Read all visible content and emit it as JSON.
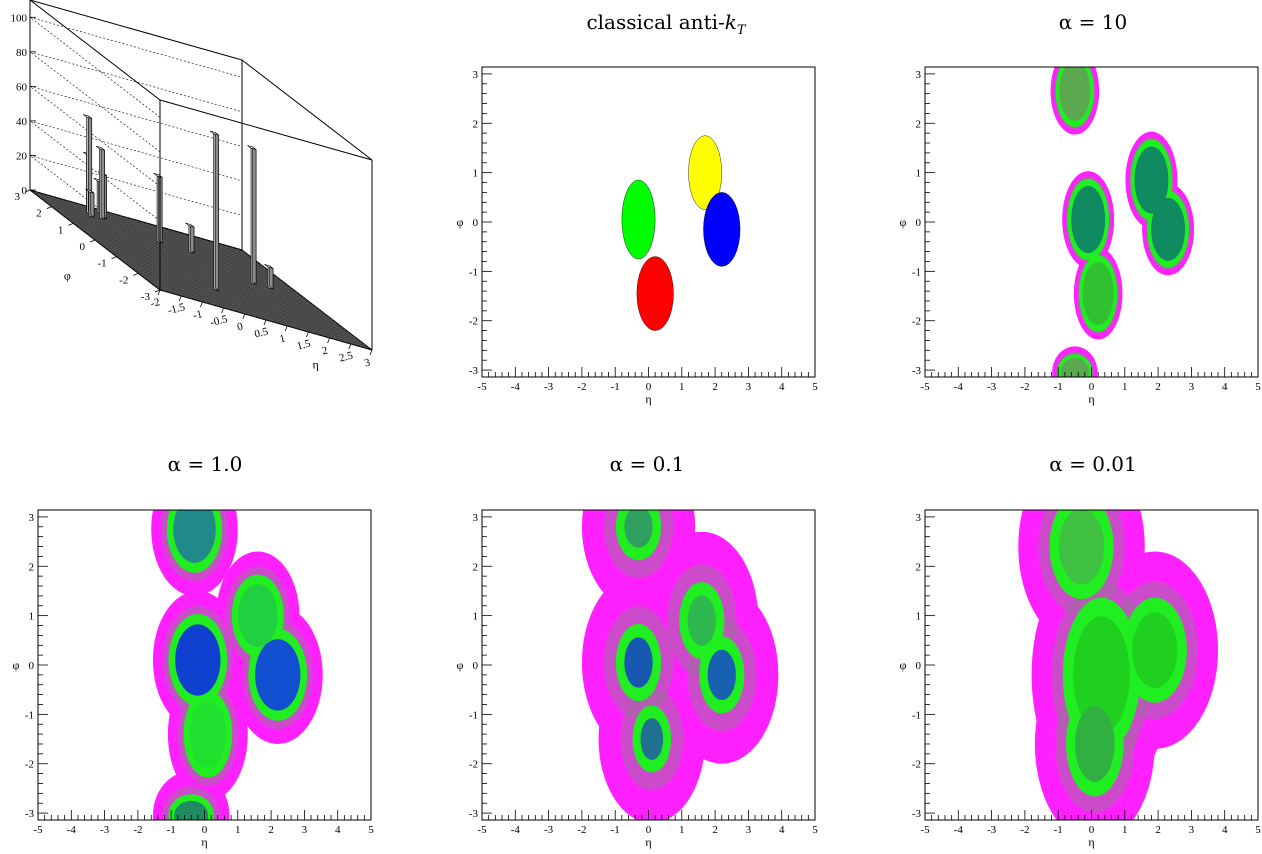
{
  "figure": {
    "panels": [
      {
        "title": "",
        "type": "3d"
      },
      {
        "title": "classical anti-kT",
        "title_main": "classical anti-",
        "title_var": "k",
        "title_sub": "T",
        "type": "jets"
      },
      {
        "title": "α = 10",
        "type": "density"
      },
      {
        "title": "α = 1.0",
        "type": "density"
      },
      {
        "title": "α = 0.1",
        "type": "density"
      },
      {
        "title": "α = 0.01",
        "type": "density"
      }
    ]
  },
  "chart_data": [
    {
      "type": "bar3d",
      "title": "",
      "xlabel": "η",
      "ylabel": "φ",
      "zlabel": "",
      "xlim": [
        -2,
        3
      ],
      "ylim": [
        -3,
        3
      ],
      "zlim": [
        0,
        110
      ],
      "x_ticks": [
        "-2",
        "-1.5",
        "-1",
        "-0.5",
        "0",
        "0.5",
        "1",
        "1.5",
        "2",
        "2.5",
        "3"
      ],
      "y_ticks": [
        "-3",
        "-2",
        "-1",
        "0",
        "1",
        "2",
        "3"
      ],
      "z_ticks": [
        "0",
        "20",
        "40",
        "60",
        "80",
        "100"
      ],
      "towers": [
        {
          "eta": 0.1,
          "phi": -1.4,
          "height": 90
        },
        {
          "eta": 1.8,
          "phi": 0.2,
          "height": 78
        },
        {
          "eta": 0.3,
          "phi": 1.6,
          "height": 38
        },
        {
          "eta": 1.0,
          "phi": 1.5,
          "height": 15
        },
        {
          "eta": 2.2,
          "phi": 0.2,
          "height": 12
        },
        {
          "eta": -0.9,
          "phi": 2.5,
          "height": 55
        },
        {
          "eta": -0.7,
          "phi": 2.3,
          "height": 40
        },
        {
          "eta": -0.8,
          "phi": 2.7,
          "height": 32
        },
        {
          "eta": -0.6,
          "phi": 2.4,
          "height": 25
        },
        {
          "eta": -0.5,
          "phi": 2.8,
          "height": 18
        },
        {
          "eta": -1.0,
          "phi": 2.2,
          "height": 14
        }
      ]
    },
    {
      "type": "jets",
      "title": "classical anti-kT",
      "xlabel": "η",
      "ylabel": "φ",
      "xlim": [
        -5,
        5
      ],
      "ylim": [
        -3.14,
        3.14
      ],
      "x_ticks": [
        "-5",
        "-4",
        "-3",
        "-2",
        "-1",
        "0",
        "1",
        "2",
        "3",
        "4",
        "5"
      ],
      "y_ticks": [
        "-3",
        "-2",
        "-1",
        "0",
        "1",
        "2",
        "3"
      ],
      "jets": [
        {
          "color": "#00ff00",
          "eta": -0.3,
          "phi": 0.05,
          "reta": 0.5,
          "rphi": 0.8
        },
        {
          "color": "#ffff00",
          "eta": 1.7,
          "phi": 1.0,
          "reta": 0.5,
          "rphi": 0.75
        },
        {
          "color": "#0000ff",
          "eta": 2.2,
          "phi": -0.15,
          "reta": 0.55,
          "rphi": 0.75
        },
        {
          "color": "#ff0000",
          "eta": 0.2,
          "phi": -1.45,
          "reta": 0.55,
          "rphi": 0.75
        }
      ]
    },
    {
      "type": "heatmap",
      "title": "α = 10",
      "xlabel": "η",
      "ylabel": "φ",
      "xlim": [
        -5,
        5
      ],
      "ylim": [
        -3.14,
        3.14
      ],
      "x_ticks": [
        "-5",
        "-4",
        "-3",
        "-2",
        "-1",
        "0",
        "1",
        "2",
        "3",
        "4",
        "5"
      ],
      "y_ticks": [
        "-3",
        "-2",
        "-1",
        "0",
        "1",
        "2",
        "3"
      ],
      "blobs": [
        {
          "eta": -0.5,
          "phi": 2.65,
          "reta": 0.55,
          "rphi": 0.7,
          "core": "#5aa850"
        },
        {
          "eta": -0.1,
          "phi": 0.05,
          "reta": 0.6,
          "rphi": 0.8,
          "core": "#108a60"
        },
        {
          "eta": 1.8,
          "phi": 0.85,
          "reta": 0.6,
          "rphi": 0.8,
          "core": "#108a60"
        },
        {
          "eta": 2.3,
          "phi": -0.15,
          "reta": 0.6,
          "rphi": 0.75,
          "core": "#108a60"
        },
        {
          "eta": 0.2,
          "phi": -1.45,
          "reta": 0.55,
          "rphi": 0.75,
          "core": "#30c030"
        },
        {
          "eta": -0.5,
          "phi": -3.05,
          "reta": 0.5,
          "rphi": 0.35,
          "core": "#5aa850"
        }
      ]
    },
    {
      "type": "heatmap",
      "title": "α = 1.0",
      "xlabel": "η",
      "ylabel": "φ",
      "xlim": [
        -5,
        5
      ],
      "ylim": [
        -3.14,
        3.14
      ],
      "x_ticks": [
        "-5",
        "-4",
        "-3",
        "-2",
        "-1",
        "0",
        "1",
        "2",
        "3",
        "4",
        "5"
      ],
      "y_ticks": [
        "-3",
        "-2",
        "-1",
        "0",
        "1",
        "2",
        "3"
      ],
      "blobs": [
        {
          "eta": -0.3,
          "phi": 2.75,
          "reta": 0.75,
          "rphi": 0.8,
          "core": "#208a8a"
        },
        {
          "eta": -0.2,
          "phi": 0.1,
          "reta": 0.8,
          "rphi": 0.85,
          "core": "#1040d0"
        },
        {
          "eta": 1.6,
          "phi": 1.0,
          "reta": 0.7,
          "rphi": 0.75,
          "core": "#20d040"
        },
        {
          "eta": 2.2,
          "phi": -0.2,
          "reta": 0.8,
          "rphi": 0.85,
          "core": "#1050d0"
        },
        {
          "eta": 0.1,
          "phi": -1.4,
          "reta": 0.65,
          "rphi": 0.8,
          "core": "#20e030"
        },
        {
          "eta": -0.4,
          "phi": -3.05,
          "reta": 0.6,
          "rphi": 0.35,
          "core": "#208a60"
        }
      ]
    },
    {
      "type": "heatmap",
      "title": "α = 0.1",
      "xlabel": "η",
      "ylabel": "φ",
      "xlim": [
        -5,
        5
      ],
      "ylim": [
        -3.14,
        3.14
      ],
      "x_ticks": [
        "-5",
        "-4",
        "-3",
        "-2",
        "-1",
        "0",
        "1",
        "2",
        "3",
        "4",
        "5"
      ],
      "y_ticks": [
        "-3",
        "-2",
        "-1",
        "0",
        "1",
        "2",
        "3"
      ],
      "blobs": [
        {
          "eta": -0.3,
          "phi": 2.8,
          "reta": 0.5,
          "rphi": 0.5,
          "core": "#30a060"
        },
        {
          "eta": -0.3,
          "phi": 0.05,
          "reta": 0.5,
          "rphi": 0.6,
          "core": "#1858b0"
        },
        {
          "eta": 1.6,
          "phi": 0.9,
          "reta": 0.5,
          "rphi": 0.6,
          "core": "#30b850"
        },
        {
          "eta": 2.2,
          "phi": -0.2,
          "reta": 0.5,
          "rphi": 0.6,
          "core": "#1860b0"
        },
        {
          "eta": 0.1,
          "phi": -1.5,
          "reta": 0.4,
          "rphi": 0.5,
          "core": "#207090"
        }
      ]
    },
    {
      "type": "heatmap",
      "title": "α = 0.01",
      "xlabel": "η",
      "ylabel": "φ",
      "xlim": [
        -5,
        5
      ],
      "ylim": [
        -3.14,
        3.14
      ],
      "x_ticks": [
        "-5",
        "-4",
        "-3",
        "-2",
        "-1",
        "0",
        "1",
        "2",
        "3",
        "4",
        "5"
      ],
      "y_ticks": [
        "-3",
        "-2",
        "-1",
        "0",
        "1",
        "2",
        "3"
      ],
      "blobs": [
        {
          "eta": -0.3,
          "phi": 2.4,
          "reta": 0.8,
          "rphi": 0.9,
          "core": "#40c040"
        },
        {
          "eta": 0.3,
          "phi": -0.2,
          "reta": 1.0,
          "rphi": 1.4,
          "core": "#20d020"
        },
        {
          "eta": 1.9,
          "phi": 0.3,
          "reta": 0.8,
          "rphi": 0.9,
          "core": "#20d020"
        },
        {
          "eta": 0.1,
          "phi": -1.6,
          "reta": 0.7,
          "rphi": 0.9,
          "core": "#30b040"
        }
      ]
    }
  ]
}
